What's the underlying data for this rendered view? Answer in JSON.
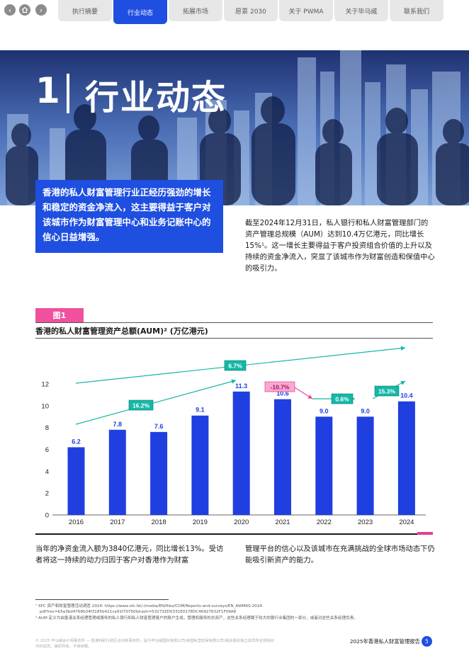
{
  "nav": {
    "tabs": [
      "执行摘要",
      "行业动态",
      "拓展市场",
      "愿景 2030",
      "关于 PWMA",
      "关于毕马威",
      "联系我们"
    ],
    "active_tab": 1
  },
  "hero": {
    "number": "1",
    "title": "行业动态"
  },
  "intro_box": "香港的私人财富管理行业正经历强劲的增长和稳定的资金净流入，这主要得益于客户对该城市作为财富管理中心和业务记账中心的信心日益增强。",
  "right_para": "截至2024年12月31日，私人银行和私人财富管理部门的资产管理总规模（AUM）达到10.4万亿港元，同比增长15%¹。这一增长主要得益于客户投资组合价值的上升以及持续的资金净流入，突显了该城市作为财富创造和保值中心的吸引力。",
  "figure": {
    "tag": "图1",
    "title": "香港的私人财富管理资产总额(AUM)² (万亿港元)"
  },
  "chart_data": {
    "type": "bar",
    "categories": [
      "2016",
      "2017",
      "2018",
      "2019",
      "2020",
      "2021",
      "2022",
      "2023",
      "2024"
    ],
    "values": [
      6.2,
      7.8,
      7.6,
      9.1,
      11.3,
      10.6,
      9.0,
      9.0,
      10.4
    ],
    "value_labels": [
      "6.2",
      "7.8",
      "7.6",
      "9.1",
      "11.3",
      "10.6",
      "9.0",
      "9.0",
      "10.4"
    ],
    "yticks": [
      "0",
      "2",
      "4",
      "6",
      "8",
      "10",
      "12"
    ],
    "ylim": [
      0,
      13
    ],
    "bar_color": "#1f3fe0",
    "growth_labels": [
      {
        "text": "6.7%",
        "color": "#14b8a6"
      },
      {
        "text": "16.2%",
        "color": "#14b8a6"
      },
      {
        "text": "-10.7%",
        "color": "#f472b6"
      },
      {
        "text": "0.6%",
        "color": "#14b8a6"
      },
      {
        "text": "15.3%",
        "color": "#14b8a6"
      }
    ]
  },
  "col1": "当年的净资金流入额为3840亿港元，同比增长13%。受访者将这一持续的动力归因于客户对香港作为财富",
  "col2": "管理平台的信心以及该城市在充满挑战的全球市场动态下仍能吸引新资产的能力。",
  "footnotes": [
    "¹  SFC 资产和财富管理活动调查 2024: https://www.sfc.hk/-/media/EN/files/COM/Reports-and-surveys/EN_AWMAS-2024.",
    "pdf?rev=b5a3bd4768b34f3185b421ca91f70750&hash=53273ZD0331E0178DC46927632F1F09A8",
    "²  AUM 定义为由香港关系经理管理或服务的私人银行和私人财富管理客户的账户生成，管理和服务的总资产，这些关系经理属于较大的银行业集团的一部分，或者对这些关系经理负责。"
  ],
  "footer": {
    "left": "© 2025 毕马威会计师事务所 — 香港特别行政区合伙制事务所，是与毕马威国际有限公司(英国私营担保有限公司)相关联的独立成员所全球组织中的成员。版权所有，不得转载。",
    "right": "2025年香港私人财富管理报告",
    "page": "5"
  }
}
